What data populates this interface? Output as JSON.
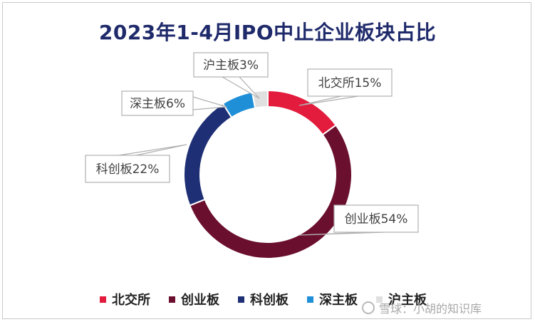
{
  "chart_data": {
    "type": "pie",
    "title": "2023年1-4月IPO中止企业板块占比",
    "categories": [
      "北交所",
      "创业板",
      "科创板",
      "深主板",
      "沪主板"
    ],
    "values": [
      15,
      54,
      22,
      6,
      3
    ],
    "labels": [
      "北交所15%",
      "创业板54%",
      "科创板22%",
      "深主板6%",
      "沪主板3%"
    ],
    "colors": [
      "#e31b3c",
      "#6b0f2e",
      "#1e2f75",
      "#1f8fd8",
      "#e0e0e0"
    ],
    "donut": true,
    "legend_position": "bottom"
  },
  "watermark": {
    "text": "雪球：小胡的知识库"
  }
}
